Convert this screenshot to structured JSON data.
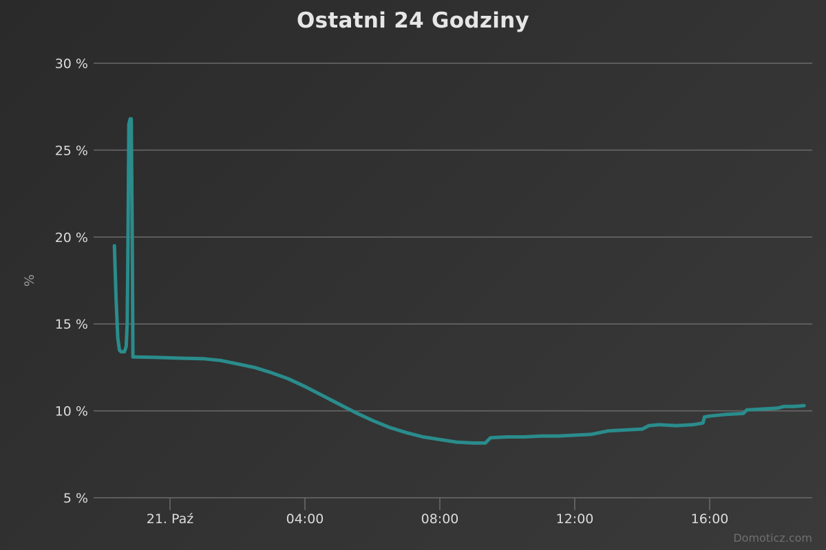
{
  "chart_data": {
    "type": "line",
    "title": "Ostatni 24 Godziny",
    "ylabel": "%",
    "xlabel": "",
    "ylim": [
      5,
      30
    ],
    "y_ticks": [
      5,
      10,
      15,
      20,
      25,
      30
    ],
    "y_tick_labels": [
      "5 %",
      "10 %",
      "15 %",
      "20 %",
      "25 %",
      "30 %"
    ],
    "x_ticks": [
      {
        "hour": 0,
        "label": "21. Paź"
      },
      {
        "hour": 4,
        "label": "04:00"
      },
      {
        "hour": 8,
        "label": "08:00"
      },
      {
        "hour": 12,
        "label": "12:00"
      },
      {
        "hour": 16,
        "label": "16:00"
      }
    ],
    "grid": true,
    "legend": "none",
    "color": "#2a8c8c",
    "series": [
      {
        "values": [
          [
            -1.65,
            19.5
          ],
          [
            -1.6,
            16.5
          ],
          [
            -1.55,
            14.2
          ],
          [
            -1.5,
            13.5
          ],
          [
            -1.45,
            13.4
          ],
          [
            -1.35,
            13.4
          ],
          [
            -1.3,
            13.7
          ],
          [
            -1.27,
            15.0
          ],
          [
            -1.25,
            19.0
          ],
          [
            -1.22,
            26.5
          ],
          [
            -1.18,
            26.8
          ],
          [
            -1.15,
            26.8
          ],
          [
            -1.12,
            20.0
          ],
          [
            -1.1,
            13.1
          ],
          [
            -1.0,
            13.1
          ],
          [
            -0.5,
            13.08
          ],
          [
            0.0,
            13.05
          ],
          [
            0.5,
            13.02
          ],
          [
            1.0,
            13.0
          ],
          [
            1.5,
            12.9
          ],
          [
            2.0,
            12.7
          ],
          [
            2.5,
            12.5
          ],
          [
            3.0,
            12.2
          ],
          [
            3.5,
            11.85
          ],
          [
            4.0,
            11.4
          ],
          [
            4.5,
            10.9
          ],
          [
            5.0,
            10.4
          ],
          [
            5.5,
            9.9
          ],
          [
            6.0,
            9.45
          ],
          [
            6.5,
            9.05
          ],
          [
            7.0,
            8.75
          ],
          [
            7.5,
            8.5
          ],
          [
            8.0,
            8.35
          ],
          [
            8.5,
            8.2
          ],
          [
            9.0,
            8.15
          ],
          [
            9.35,
            8.15
          ],
          [
            9.5,
            8.45
          ],
          [
            10.0,
            8.5
          ],
          [
            10.5,
            8.5
          ],
          [
            11.0,
            8.55
          ],
          [
            11.5,
            8.55
          ],
          [
            12.0,
            8.6
          ],
          [
            12.5,
            8.65
          ],
          [
            13.0,
            8.85
          ],
          [
            13.5,
            8.9
          ],
          [
            14.0,
            8.95
          ],
          [
            14.2,
            9.15
          ],
          [
            14.5,
            9.2
          ],
          [
            15.0,
            9.15
          ],
          [
            15.5,
            9.2
          ],
          [
            15.8,
            9.3
          ],
          [
            15.85,
            9.65
          ],
          [
            16.0,
            9.7
          ],
          [
            16.5,
            9.8
          ],
          [
            17.0,
            9.85
          ],
          [
            17.1,
            10.05
          ],
          [
            17.5,
            10.1
          ],
          [
            18.0,
            10.15
          ],
          [
            18.2,
            10.25
          ],
          [
            18.5,
            10.25
          ],
          [
            18.8,
            10.3
          ]
        ]
      }
    ]
  },
  "credits": "Domoticz.com"
}
